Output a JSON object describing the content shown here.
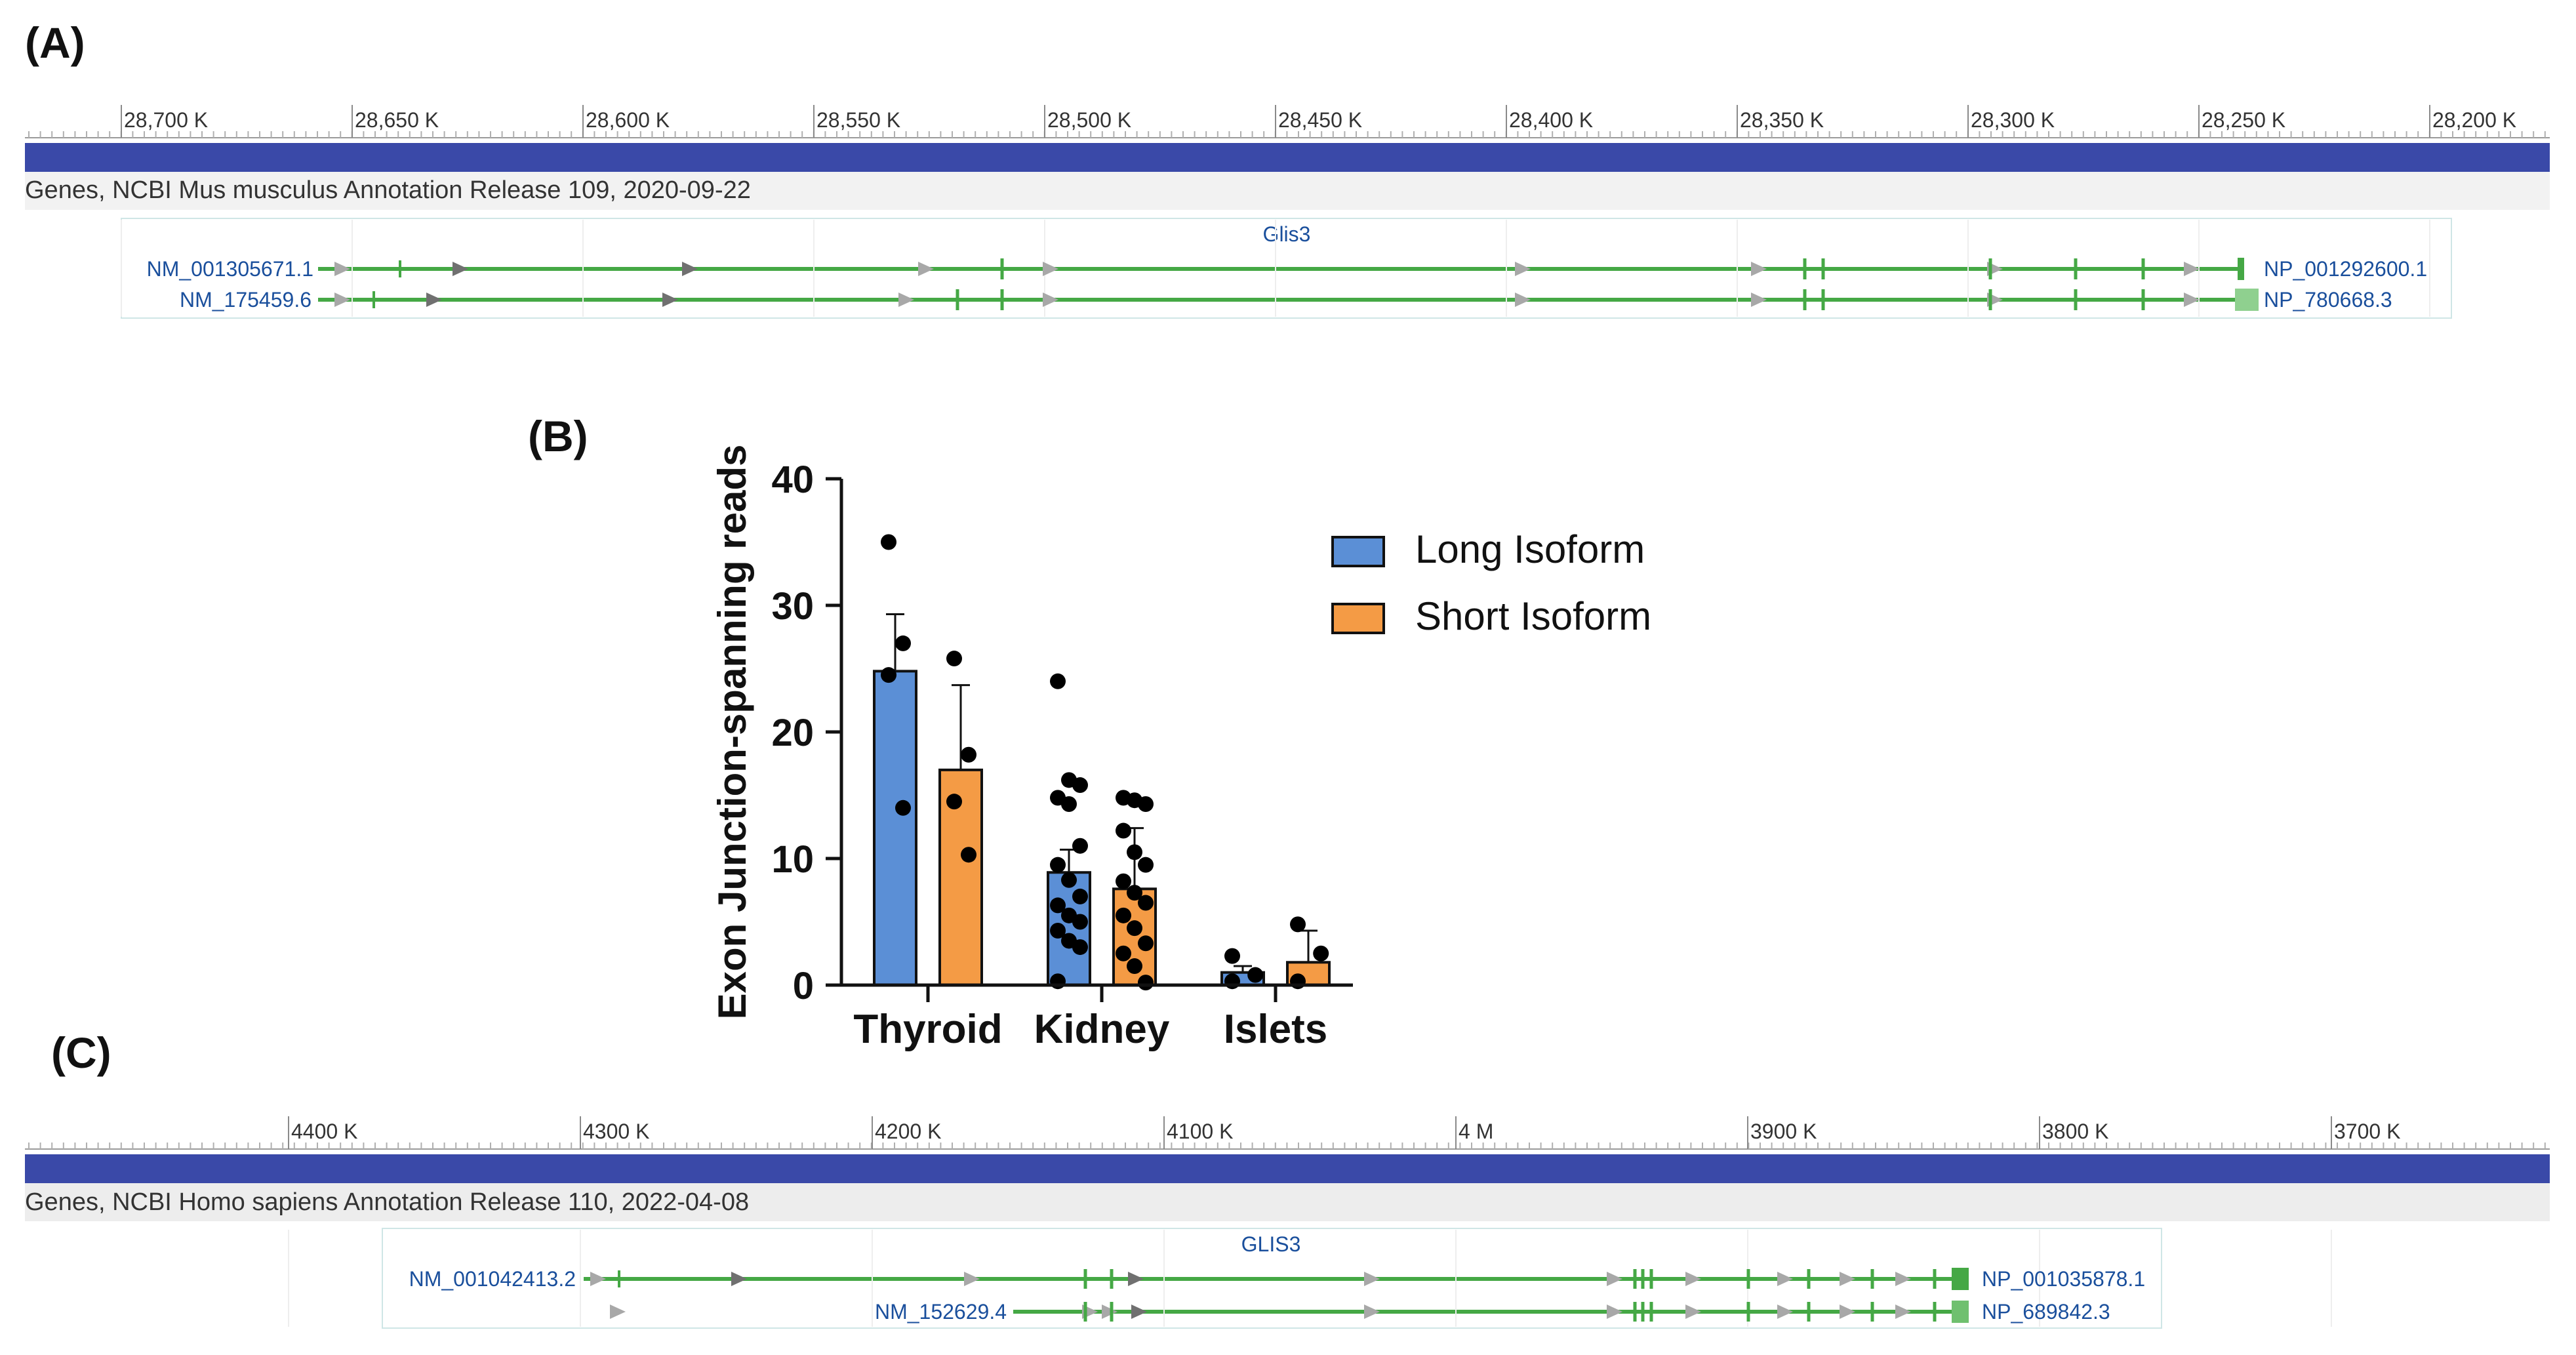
{
  "panels": {
    "a": {
      "label": "(A)",
      "track_label": "Genes, NCBI Mus musculus Annotation Release 109, 2020-09-22",
      "gene_name": "Glis3",
      "ruler_ticks": [
        "28,700 K",
        "28,650 K",
        "28,600 K",
        "28,550 K",
        "28,500 K",
        "28,450 K",
        "28,400 K",
        "28,350 K",
        "28,300 K",
        "28,250 K",
        "28,200 K"
      ],
      "transcripts": [
        {
          "name": "NM_001305671.1",
          "protein": "NP_001292600.1"
        },
        {
          "name": "NM_175459.6",
          "protein": "NP_780668.3"
        }
      ]
    },
    "b": {
      "label": "(B)"
    },
    "c": {
      "label": "(C)",
      "track_label": "Genes, NCBI Homo sapiens Annotation Release 110, 2022-04-08",
      "gene_name": "GLIS3",
      "ruler_ticks": [
        "4400 K",
        "4300 K",
        "4200 K",
        "4100 K",
        "4 M",
        "3900 K",
        "3800 K",
        "3700 K"
      ],
      "transcripts": [
        {
          "name": "NM_001042413.2",
          "protein": "NP_001035878.1"
        },
        {
          "name": "NM_152629.4",
          "protein": "NP_689842.3"
        }
      ]
    }
  },
  "colors": {
    "track_bar": "#3a49a8",
    "gene_line": "#45a845",
    "arrow_gray": "#a8a8a8",
    "arrow_dark": "#707070",
    "link_blue": "#1a4f9c",
    "long_isoform": "#5b8fd6",
    "short_isoform": "#f49b45"
  },
  "chart_data": {
    "type": "bar",
    "title": "",
    "xlabel": "",
    "ylabel": "Exon Junction-spanning reads",
    "ylim": [
      0,
      40
    ],
    "yticks": [
      0,
      10,
      20,
      30,
      40
    ],
    "categories": [
      "Thyroid",
      "Kidney",
      "Islets"
    ],
    "legend": {
      "placement": "right"
    },
    "series": [
      {
        "name": "Long Isoform",
        "values": [
          24.8,
          8.9,
          1.0
        ],
        "errors": [
          4.5,
          1.8,
          0.5
        ],
        "points": [
          [
            35,
            27,
            24.5,
            14
          ],
          [
            24,
            16.2,
            15.8,
            14.8,
            14.3,
            11,
            9.5,
            8.3,
            7,
            6.3,
            5.5,
            5,
            4.3,
            3.5,
            3,
            0.3
          ],
          [
            2.3,
            0.8,
            0.3
          ]
        ]
      },
      {
        "name": "Short Isoform",
        "values": [
          17.0,
          7.6,
          1.8
        ],
        "errors": [
          6.7,
          4.8,
          2.5
        ],
        "points": [
          [
            25.8,
            18.2,
            14.5,
            10.3
          ],
          [
            14.8,
            14.6,
            14.3,
            12.2,
            10.5,
            9.5,
            8.2,
            7.3,
            6.5,
            5.5,
            4.5,
            3.3,
            2.5,
            1.5,
            0.2
          ],
          [
            4.8,
            2.5,
            0.3
          ]
        ]
      }
    ]
  }
}
